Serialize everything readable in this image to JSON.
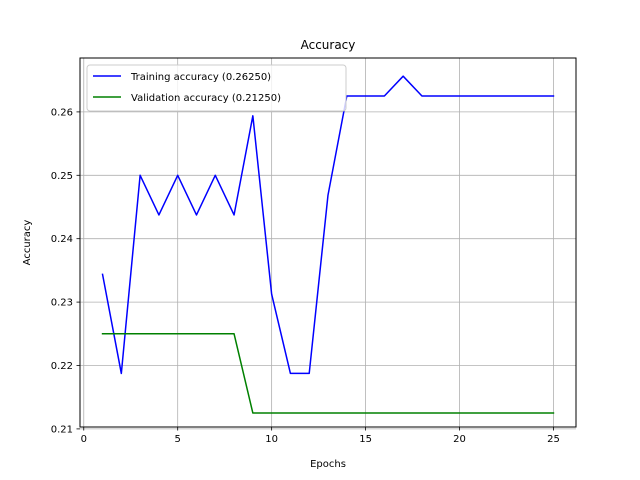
{
  "chart_data": {
    "type": "line",
    "title": "Accuracy",
    "xlabel": "Epochs",
    "ylabel": "Accuracy",
    "xlim": [
      -0.2,
      26.2
    ],
    "ylim": [
      0.2103,
      0.2685
    ],
    "xticks": [
      0,
      5,
      10,
      15,
      20,
      25
    ],
    "xtick_labels": [
      "0",
      "5",
      "10",
      "15",
      "20",
      "25"
    ],
    "yticks": [
      0.21,
      0.22,
      0.23,
      0.24,
      0.25,
      0.26
    ],
    "ytick_labels": [
      "0.21",
      "0.22",
      "0.23",
      "0.24",
      "0.25",
      "0.26"
    ],
    "grid": true,
    "legend_position": "top-left",
    "x": [
      1,
      2,
      3,
      4,
      5,
      6,
      7,
      8,
      9,
      10,
      11,
      12,
      13,
      14,
      15,
      16,
      17,
      18,
      19,
      20,
      21,
      22,
      23,
      24,
      25
    ],
    "series": [
      {
        "name": "Training accuracy (0.26250)",
        "color": "#0000ff",
        "values": [
          0.23438,
          0.21875,
          0.25,
          0.24375,
          0.25,
          0.24375,
          0.25,
          0.24375,
          0.25938,
          0.23125,
          0.21875,
          0.21875,
          0.24688,
          0.2625,
          0.2625,
          0.2625,
          0.26563,
          0.2625,
          0.2625,
          0.2625,
          0.2625,
          0.2625,
          0.2625,
          0.2625,
          0.2625
        ]
      },
      {
        "name": "Validation accuracy (0.21250)",
        "color": "#008000",
        "values": [
          0.225,
          0.225,
          0.225,
          0.225,
          0.225,
          0.225,
          0.225,
          0.225,
          0.2125,
          0.2125,
          0.2125,
          0.2125,
          0.2125,
          0.2125,
          0.2125,
          0.2125,
          0.2125,
          0.2125,
          0.2125,
          0.2125,
          0.2125,
          0.2125,
          0.2125,
          0.2125,
          0.2125
        ]
      }
    ]
  }
}
